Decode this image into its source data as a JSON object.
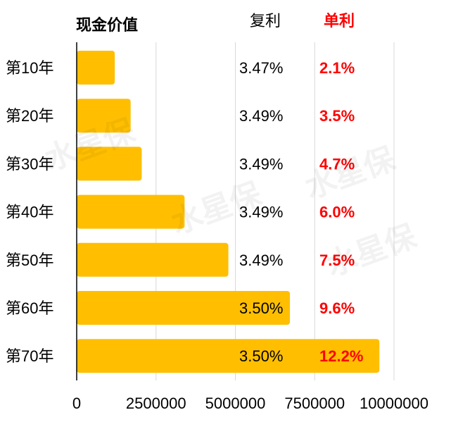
{
  "header": {
    "title": "现金价值",
    "compound_label": "复利",
    "simple_label": "单利"
  },
  "watermark": "水星保",
  "colors": {
    "bar": "#FFBF00",
    "simple_rate": "#FF0000",
    "text": "#000000",
    "grid": "#D8D8D8"
  },
  "chart_data": {
    "type": "bar",
    "orientation": "horizontal",
    "categories": [
      "第10年",
      "第20年",
      "第30年",
      "第40年",
      "第50年",
      "第60年",
      "第70年"
    ],
    "values": [
      1200000,
      1700000,
      2050000,
      3400000,
      4780000,
      6720000,
      9540000
    ],
    "compound_rates": [
      "3.47%",
      "3.49%",
      "3.49%",
      "3.49%",
      "3.49%",
      "3.50%",
      "3.50%"
    ],
    "simple_rates": [
      "2.1%",
      "3.5%",
      "4.7%",
      "6.0%",
      "7.5%",
      "9.6%",
      "12.2%"
    ],
    "xlim": [
      0,
      10000000
    ],
    "xticks": [
      "0",
      "2500000",
      "5000000",
      "7500000",
      "10000000"
    ],
    "grid": true
  }
}
